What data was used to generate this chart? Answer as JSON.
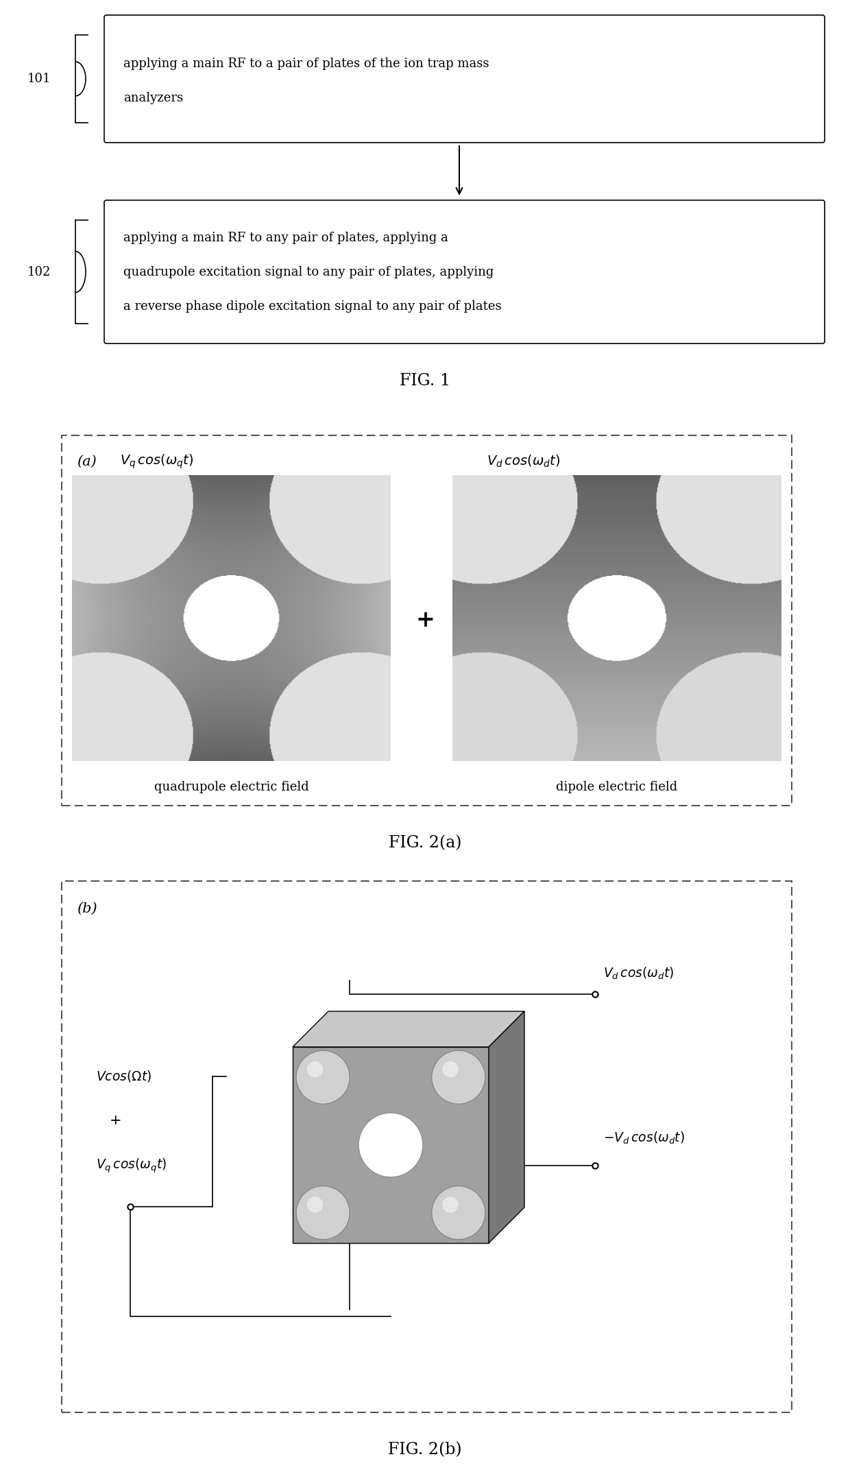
{
  "fig_width": 12.4,
  "fig_height": 21.63,
  "bg_color": "#ffffff",
  "box1_text_line1": "applying a main RF to a pair of plates of the ion trap mass",
  "box1_text_line2": "analyzers",
  "box2_text_line1": "applying a main RF to any pair of plates, applying a",
  "box2_text_line2": "quadrupole excitation signal to any pair of plates, applying",
  "box2_text_line3": "a reverse phase dipole excitation signal to any pair of plates",
  "label101": "101",
  "label102": "102",
  "fig1_caption": "FIG. 1",
  "fig2a_caption": "FIG. 2(a)",
  "fig2b_caption": "FIG. 2(b)",
  "label_a": "(a)",
  "label_b": "(b)",
  "quad_field_text": "quadrupole electric field",
  "dip_field_text": "dipole electric field",
  "plus_symbol": "+",
  "plus2": "+",
  "gray_bg": 0.55,
  "gray_light": 0.72,
  "gray_dark": 0.38
}
